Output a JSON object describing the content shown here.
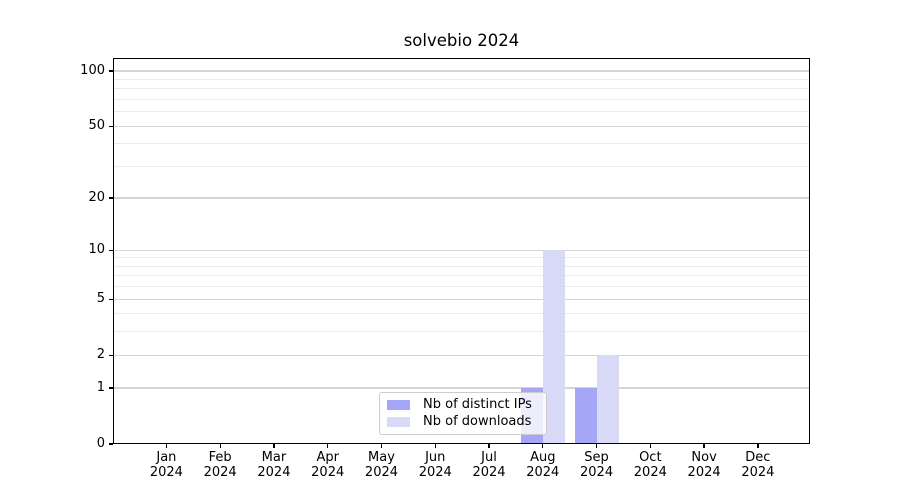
{
  "chart_data": {
    "type": "bar",
    "title": "solvebio 2024",
    "categories": [
      "Jan 2024",
      "Feb 2024",
      "Mar 2024",
      "Apr 2024",
      "May 2024",
      "Jun 2024",
      "Jul 2024",
      "Aug 2024",
      "Sep 2024",
      "Oct 2024",
      "Nov 2024",
      "Dec 2024"
    ],
    "series": [
      {
        "name": "Nb of distinct IPs",
        "color": "#a6a6f7",
        "values": [
          0,
          0,
          0,
          0,
          0,
          0,
          0,
          1,
          1,
          0,
          0,
          0
        ]
      },
      {
        "name": "Nb of downloads",
        "color": "#d9d9f8",
        "values": [
          0,
          0,
          0,
          0,
          0,
          0,
          0,
          10,
          2,
          0,
          0,
          0
        ]
      }
    ],
    "xlabel": "",
    "ylabel": "",
    "y_scale": "log1p",
    "y_ticks": [
      0,
      1,
      2,
      5,
      10,
      20,
      50,
      100
    ],
    "y_tick_labels": [
      "0",
      "1",
      "2",
      "5",
      "10",
      "20",
      "50",
      "100"
    ],
    "y_minor_gridlines": [
      3,
      4,
      6,
      7,
      8,
      9,
      30,
      40,
      60,
      70,
      80,
      90
    ],
    "ylim": [
      0,
      117
    ],
    "grid": true,
    "legend_position": "lower center"
  },
  "colors": {
    "bar_distinct_ips": "#a6a6f7",
    "bar_downloads": "#d9d9f8",
    "grid_major": "#d4d4d4",
    "grid_minor": "#ebebeb",
    "axis": "#000000",
    "legend_border": "#cccccc",
    "background": "#ffffff"
  }
}
